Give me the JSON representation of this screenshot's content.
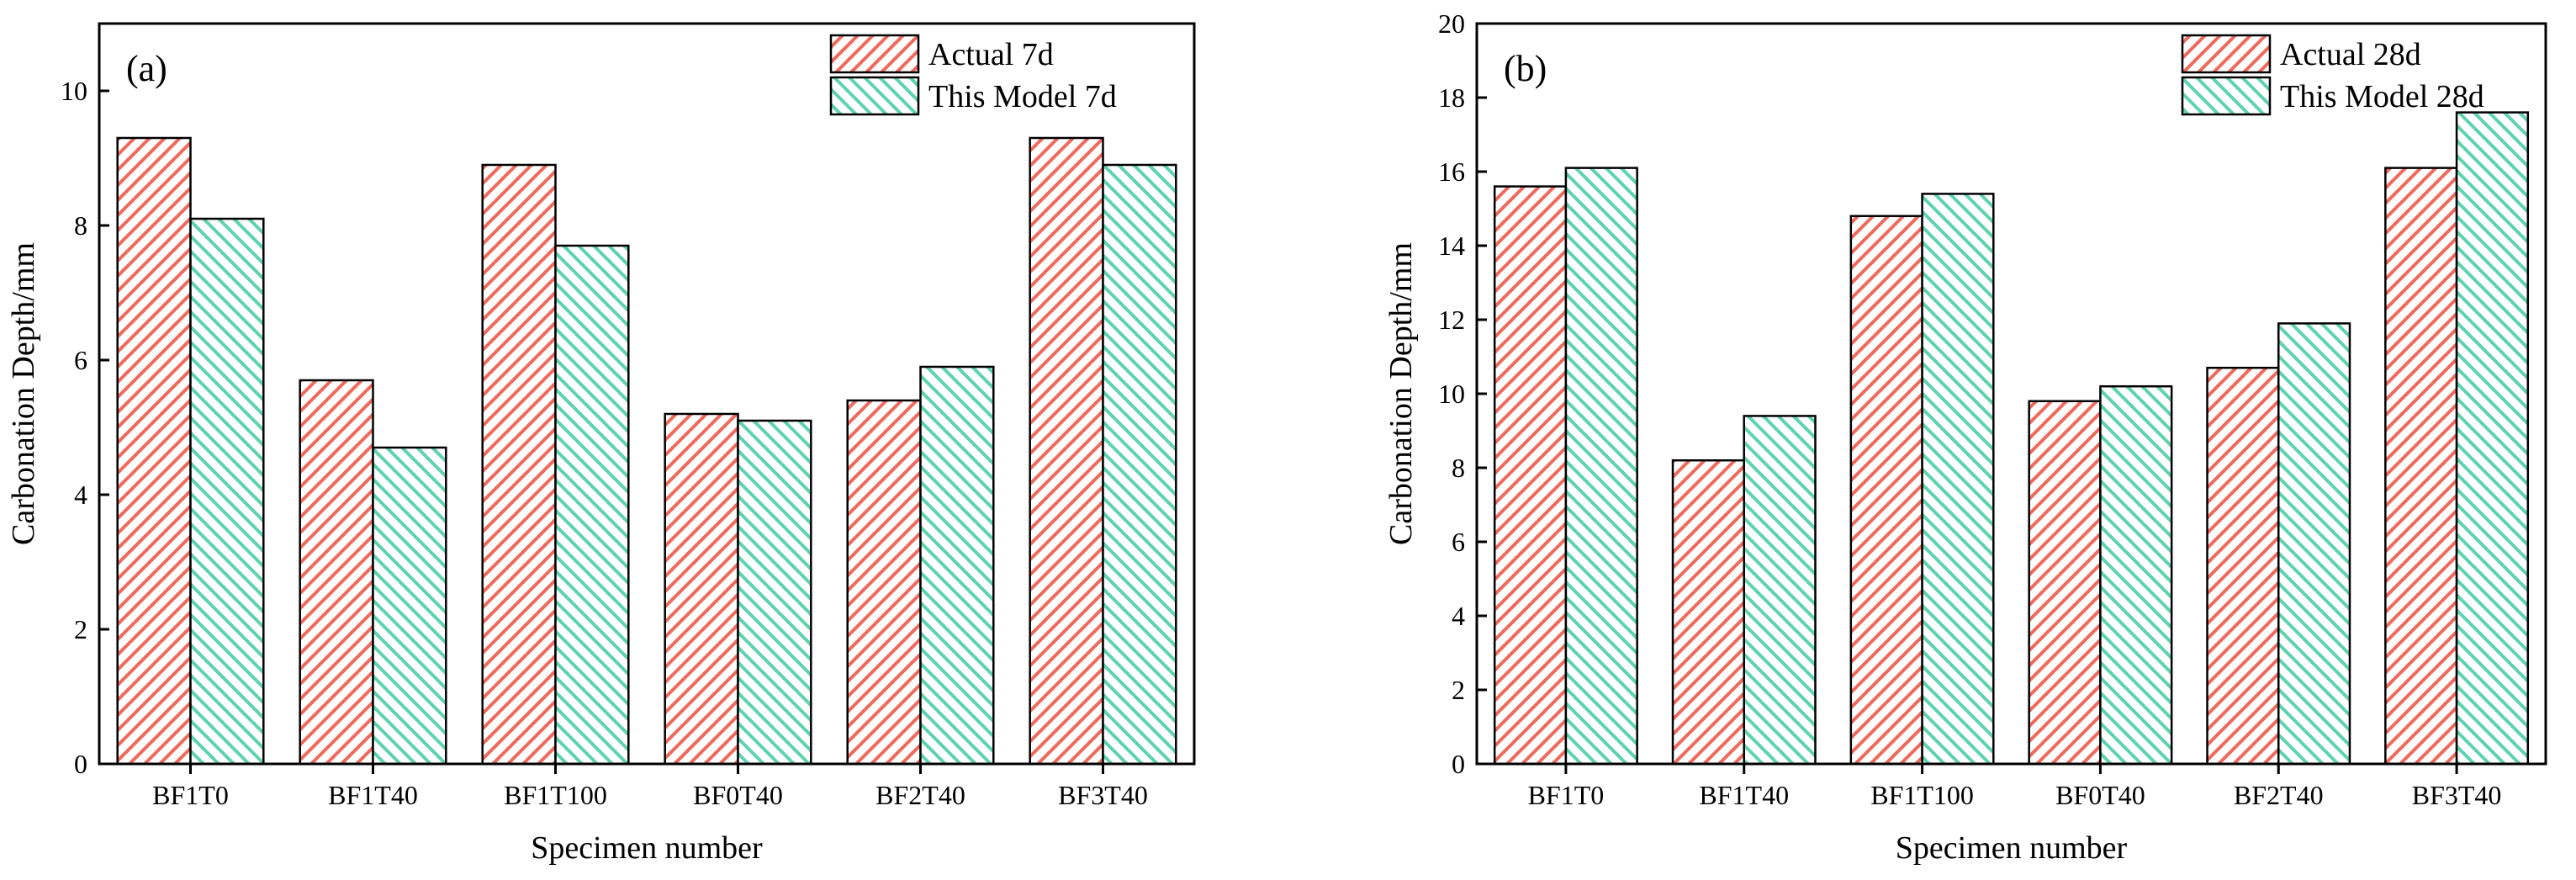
{
  "chart_data": [
    {
      "type": "bar",
      "panel_label": "(a)",
      "title": "",
      "xlabel": "Specimen number",
      "ylabel": "Carbonation Depth/mm",
      "ylim": [
        0,
        11
      ],
      "yticks": [
        0,
        2,
        4,
        6,
        8,
        10
      ],
      "categories": [
        "BF1T0",
        "BF1T40",
        "BF1T100",
        "BF0T40",
        "BF2T40",
        "BF3T40"
      ],
      "series": [
        {
          "name": "Actual 7d",
          "values": [
            9.3,
            5.7,
            8.9,
            5.2,
            5.4,
            9.3
          ]
        },
        {
          "name": "This Model 7d",
          "values": [
            8.1,
            4.7,
            7.7,
            5.1,
            5.9,
            8.9
          ]
        }
      ],
      "legend_position": "top-right"
    },
    {
      "type": "bar",
      "panel_label": "(b)",
      "title": "",
      "xlabel": "Specimen number",
      "ylabel": "Carbonation Depth/mm",
      "ylim": [
        0,
        20
      ],
      "yticks": [
        0,
        2,
        4,
        6,
        8,
        10,
        12,
        14,
        16,
        18,
        20
      ],
      "categories": [
        "BF1T0",
        "BF1T40",
        "BF1T100",
        "BF0T40",
        "BF2T40",
        "BF3T40"
      ],
      "series": [
        {
          "name": "Actual 28d",
          "values": [
            15.6,
            8.2,
            14.8,
            9.8,
            10.7,
            16.1
          ]
        },
        {
          "name": "This Model 28d",
          "values": [
            16.1,
            9.4,
            15.4,
            10.2,
            11.9,
            17.6
          ]
        }
      ],
      "legend_position": "top-right"
    }
  ],
  "colors": {
    "series_0": "#ee6b5e",
    "series_1": "#5fd3b0",
    "axis": "#000000"
  }
}
